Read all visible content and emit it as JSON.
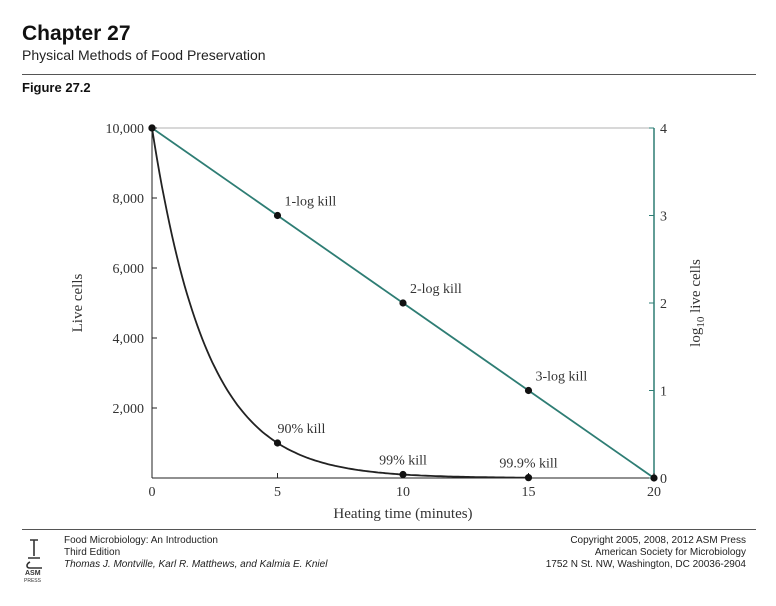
{
  "header": {
    "chapter": "Chapter 27",
    "subtitle": "Physical Methods of Food Preservation",
    "figure": "Figure 27.2"
  },
  "chart_data": {
    "type": "line",
    "xlabel": "Heating time (minutes)",
    "ylabel_left": "Live cells",
    "ylabel_right": "log10 live cells",
    "xlim": [
      0,
      20
    ],
    "ylim_left": [
      0,
      10000
    ],
    "ylim_right": [
      0,
      4
    ],
    "x_ticks": [
      "0",
      "5",
      "10",
      "15",
      "20"
    ],
    "y_ticks_left": [
      "2,000",
      "4,000",
      "6,000",
      "8,000",
      "10,000"
    ],
    "y_ticks_right": [
      "0",
      "1",
      "2",
      "3",
      "4"
    ],
    "series": [
      {
        "axis": "left",
        "color": "#222222",
        "x": [
          0,
          5,
          10,
          15
        ],
        "y": [
          10000,
          1000,
          100,
          10
        ]
      },
      {
        "axis": "right",
        "color": "#2e7d74",
        "x": [
          0,
          5,
          10,
          15,
          20
        ],
        "y": [
          4,
          3,
          2,
          1,
          0
        ]
      }
    ],
    "annotations": [
      {
        "text": "1-log kill",
        "x": 5,
        "axis": "right",
        "y": 3
      },
      {
        "text": "2-log kill",
        "x": 10,
        "axis": "right",
        "y": 2
      },
      {
        "text": "3-log kill",
        "x": 15,
        "axis": "right",
        "y": 1
      },
      {
        "text": "90% kill",
        "x": 5,
        "axis": "left",
        "y": 1000
      },
      {
        "text": "99% kill",
        "x": 10,
        "axis": "left",
        "y": 100
      },
      {
        "text": "99.9% kill",
        "x": 15,
        "axis": "left",
        "y": 10
      }
    ]
  },
  "footer": {
    "book_title": "Food Microbiology: An Introduction",
    "edition": "Third Edition",
    "authors": "Thomas J. Montville, Karl R. Matthews, and Kalmia E. Kniel",
    "copyright": "Copyright 2005, 2008, 2012 ASM Press",
    "society": "American Society for Microbiology",
    "address": "1752 N St. NW, Washington, DC 20036-2904",
    "logo_text": "ASM PRESS"
  }
}
